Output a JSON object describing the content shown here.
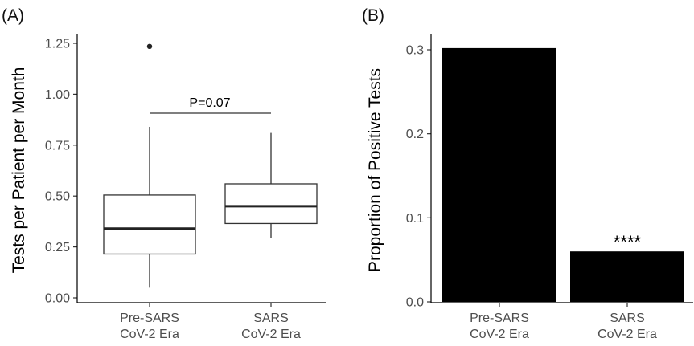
{
  "chart_data": [
    {
      "panel": "(A)",
      "type": "box",
      "ylabel": "Tests per Patient per Month",
      "xlabel": "",
      "ylim": [
        0,
        1.3
      ],
      "yticks": [
        "0.00",
        "0.25",
        "0.50",
        "0.75",
        "1.00",
        "1.25"
      ],
      "categories": [
        "Pre-SARS\nCoV-2 Era",
        "SARS\nCoV-2 Era"
      ],
      "boxes": [
        {
          "category": "Pre-SARS\nCoV-2 Era",
          "min": 0.05,
          "q1": 0.215,
          "median": 0.34,
          "q3": 0.505,
          "max": 0.84,
          "outliers": [
            1.235
          ]
        },
        {
          "category": "SARS\nCoV-2 Era",
          "min": 0.295,
          "q1": 0.365,
          "median": 0.45,
          "q3": 0.56,
          "max": 0.81,
          "outliers": []
        }
      ],
      "annotation": "P=0.07",
      "grid": false
    },
    {
      "panel": "(B)",
      "type": "bar",
      "ylabel": "Proportion of Positive Tests",
      "xlabel": "",
      "ylim": [
        0,
        0.32
      ],
      "yticks": [
        "0.0",
        "0.1",
        "0.2",
        "0.3"
      ],
      "categories": [
        "Pre-SARS\nCoV-2 Era",
        "SARS\nCoV-2 Era"
      ],
      "values": [
        0.302,
        0.06
      ],
      "annotation": "****",
      "bar_color": "#000000",
      "grid": false
    }
  ]
}
